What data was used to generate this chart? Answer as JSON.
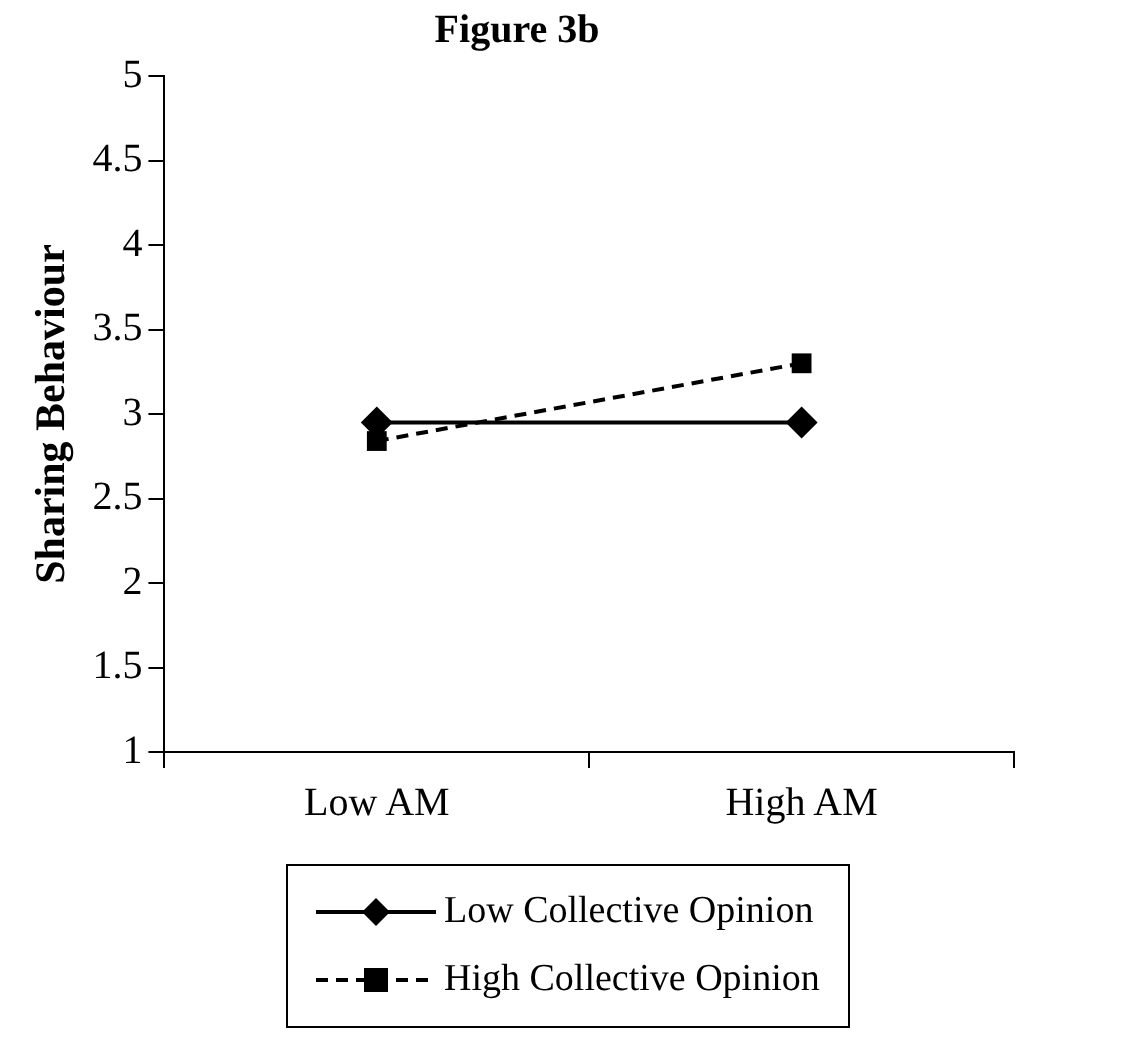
{
  "chart_data": {
    "type": "line",
    "title": "Figure 3b",
    "ylabel": "Sharing Behaviour",
    "categories": [
      "Low AM",
      "High AM"
    ],
    "series": [
      {
        "name": "Low Collective Opinion",
        "color": "#000000",
        "values": [
          2.95,
          2.95
        ],
        "marker": "diamond",
        "line_style": "solid"
      },
      {
        "name": "High Collective Opinion",
        "color": "#000000",
        "values": [
          2.84,
          3.3
        ],
        "marker": "square",
        "line_style": "dashed"
      }
    ],
    "ylim": [
      1,
      5
    ],
    "yticks": [
      1,
      1.5,
      2,
      2.5,
      3,
      3.5,
      4,
      4.5,
      5
    ],
    "grid": false,
    "legend": "bottom"
  }
}
